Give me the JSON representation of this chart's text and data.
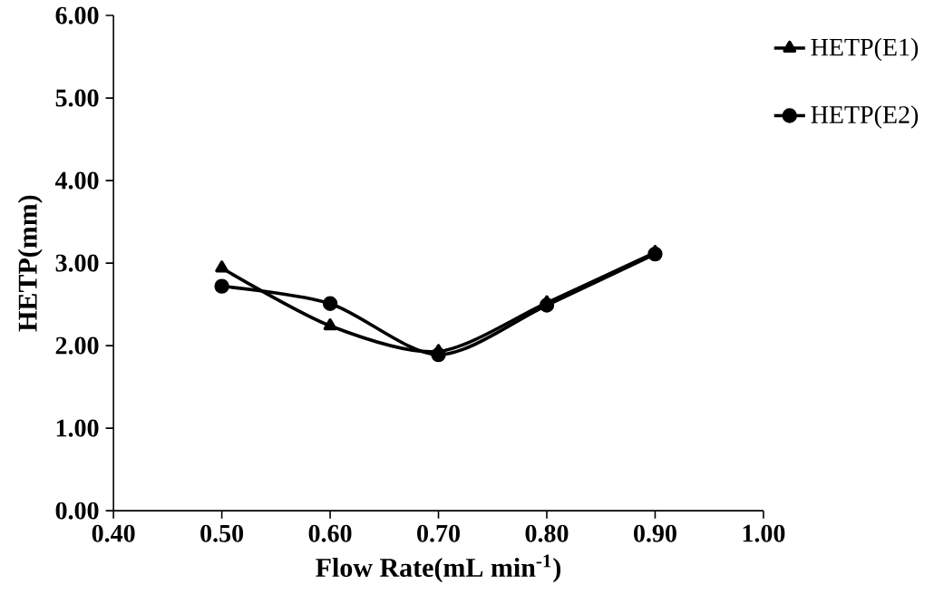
{
  "chart_data": {
    "type": "line",
    "xlabel": "Flow Rate(mL min$^{-1}$)",
    "ylabel": "HETP(mm)",
    "x": [
      0.5,
      0.6,
      0.7,
      0.8,
      0.9
    ],
    "series": [
      {
        "name": "HETP(E1)",
        "color": "#000000",
        "marker": "triangle",
        "values": [
          2.94,
          2.24,
          1.93,
          2.52,
          3.13
        ]
      },
      {
        "name": "HETP(E2)",
        "color": "#000000",
        "marker": "circle",
        "values": [
          2.72,
          2.51,
          1.89,
          2.49,
          3.11
        ]
      }
    ],
    "xlim": [
      0.4,
      1.0
    ],
    "xticks": [
      {
        "value": 0.4,
        "label": "0.40"
      },
      {
        "value": 0.5,
        "label": "0.50"
      },
      {
        "value": 0.6,
        "label": "0.60"
      },
      {
        "value": 0.7,
        "label": "0.70"
      },
      {
        "value": 0.8,
        "label": "0.80"
      },
      {
        "value": 0.9,
        "label": "0.90"
      },
      {
        "value": 1.0,
        "label": "1.00"
      }
    ],
    "ylim": [
      0,
      6
    ],
    "yticks": [
      {
        "value": 0,
        "label": "0.00"
      },
      {
        "value": 1,
        "label": "1.00"
      },
      {
        "value": 2,
        "label": "2.00"
      },
      {
        "value": 3,
        "label": "3.00"
      },
      {
        "value": 4,
        "label": "4.00"
      },
      {
        "value": 5,
        "label": "5.00"
      },
      {
        "value": 6,
        "label": "6.00"
      }
    ],
    "legend": "top right",
    "grid": false,
    "line_style": "solid"
  }
}
